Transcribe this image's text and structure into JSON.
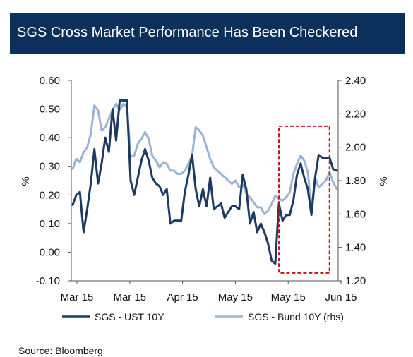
{
  "title": "SGS Cross Market Performance Has Been Checkered",
  "source": "Source: Bloomberg",
  "colors": {
    "title_bg": "#0c2f5b",
    "series1": "#1d3a63",
    "series2": "#9cb4d3",
    "highlight": "#c0151b"
  },
  "chart_data": {
    "type": "line",
    "x_tick_labels": [
      "Mar 15",
      "Mar 15",
      "Apr 15",
      "May 15",
      "May 15",
      "Jun 15"
    ],
    "y_left": {
      "unit": "%",
      "ticks": [
        "0.60",
        "0.50",
        "0.40",
        "0.30",
        "0.20",
        "0.10",
        "0.00",
        "-0.10"
      ],
      "range": [
        -0.1,
        0.6
      ]
    },
    "y_right": {
      "unit": "%",
      "ticks": [
        "2.40",
        "2.20",
        "2.00",
        "1.80",
        "1.60",
        "1.40",
        "1.20"
      ],
      "range": [
        1.2,
        2.4
      ]
    },
    "grid": false,
    "highlight_box": {
      "style": "dashed",
      "color": "#c0151b",
      "x_range": [
        57,
        71
      ]
    },
    "series": [
      {
        "name": "SGS - UST 10Y",
        "axis": "left",
        "color": "#1d3a63",
        "values": [
          0.165,
          0.2,
          0.21,
          0.07,
          0.15,
          0.24,
          0.36,
          0.24,
          0.31,
          0.4,
          0.35,
          0.5,
          0.39,
          0.53,
          0.53,
          0.53,
          0.25,
          0.2,
          0.26,
          0.32,
          0.36,
          0.32,
          0.26,
          0.24,
          0.23,
          0.2,
          0.22,
          0.1,
          0.11,
          0.11,
          0.11,
          0.21,
          0.27,
          0.34,
          0.22,
          0.16,
          0.22,
          0.16,
          0.26,
          0.15,
          0.16,
          0.17,
          0.12,
          0.14,
          0.16,
          0.16,
          0.15,
          0.27,
          0.22,
          0.1,
          0.14,
          0.07,
          0.1,
          0.07,
          0.03,
          -0.03,
          -0.04,
          0.17,
          0.11,
          0.13,
          0.13,
          0.18,
          0.27,
          0.31,
          0.26,
          0.22,
          0.13,
          0.26,
          0.34,
          0.33,
          0.33,
          0.33,
          0.29,
          0.285
        ]
      },
      {
        "name": "SGS - Bund 10Y (rhs)",
        "axis": "right",
        "color": "#9cb4d3",
        "values": [
          1.87,
          1.93,
          1.91,
          1.97,
          2.0,
          2.08,
          2.25,
          2.22,
          2.1,
          2.12,
          2.17,
          2.22,
          2.26,
          2.22,
          2.26,
          2.24,
          1.95,
          1.95,
          2.02,
          2.05,
          2.09,
          2.05,
          1.95,
          1.92,
          1.88,
          1.91,
          1.9,
          1.86,
          1.86,
          1.84,
          1.84,
          1.86,
          1.9,
          1.95,
          2.12,
          2.1,
          2.07,
          2.0,
          1.93,
          1.88,
          1.86,
          1.84,
          1.82,
          1.8,
          1.78,
          1.8,
          1.76,
          1.78,
          1.72,
          1.7,
          1.67,
          1.64,
          1.64,
          1.6,
          1.62,
          1.66,
          1.71,
          1.69,
          1.68,
          1.7,
          1.73,
          1.84,
          1.9,
          1.95,
          1.92,
          1.85,
          1.63,
          1.82,
          1.76,
          1.78,
          1.8,
          1.85,
          1.79,
          1.75
        ]
      }
    ]
  }
}
